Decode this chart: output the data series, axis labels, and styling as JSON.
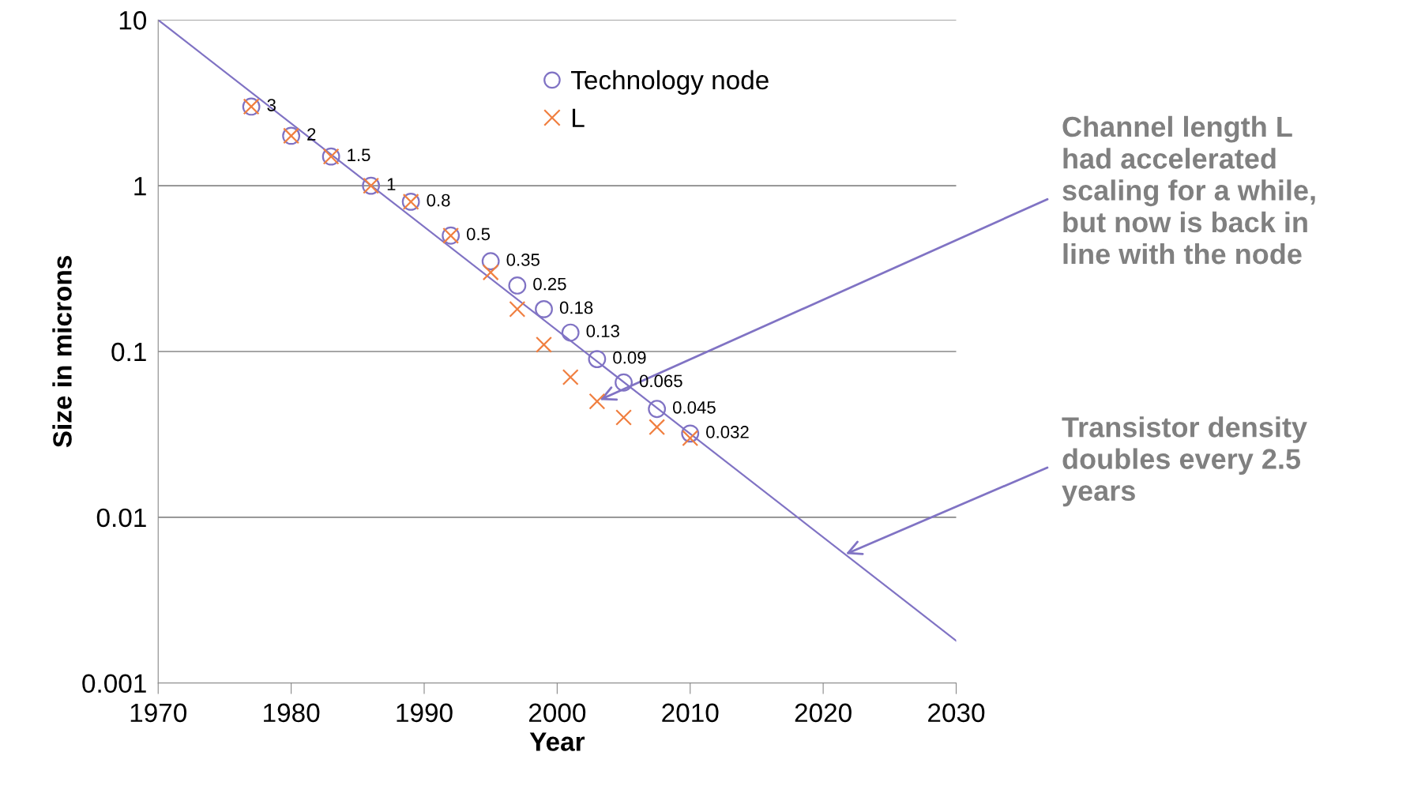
{
  "chart_data": {
    "type": "scatter",
    "xlabel": "Year",
    "ylabel": "Size in microns",
    "log": "y",
    "grid": "y",
    "legend": "top",
    "xlim": [
      1970,
      2030
    ],
    "xticks": [
      1970,
      1980,
      1990,
      2000,
      2010,
      2020,
      2030
    ],
    "ylim": [
      0.001,
      10
    ],
    "yticks": [
      0.001,
      0.01,
      0.1,
      1,
      10
    ],
    "series": [
      {
        "name": "Technology node",
        "marker": "circle",
        "color": "#8073c4",
        "x": [
          1977,
          1980,
          1983,
          1986,
          1989,
          1992,
          1995,
          1997,
          1999,
          2001,
          2003,
          2005,
          2007.5,
          2010
        ],
        "values": [
          3,
          2,
          1.5,
          1,
          0.8,
          0.5,
          0.35,
          0.25,
          0.18,
          0.13,
          0.09,
          0.065,
          0.045,
          0.032
        ],
        "value_labels": [
          "3",
          "2",
          "1.5",
          "1",
          "0.8",
          "0.5",
          "0.35",
          "0.25",
          "0.18",
          "0.13",
          "0.09",
          "0.065",
          "0.045",
          "0.032"
        ]
      },
      {
        "name": "L",
        "marker": "cross",
        "color": "#f07f40",
        "x": [
          1977,
          1980,
          1983,
          1986,
          1989,
          1992,
          1995,
          1997,
          1999,
          2001,
          2003,
          2005,
          2007.5,
          2010
        ],
        "values": [
          3,
          2,
          1.5,
          1,
          0.8,
          0.5,
          0.3,
          0.18,
          0.11,
          0.07,
          0.05,
          0.04,
          0.035,
          0.03
        ]
      },
      {
        "type": "line",
        "marker": "none",
        "color": "#8073c4",
        "x": [
          1970,
          2030
        ],
        "values": [
          10,
          0.0018
        ]
      }
    ],
    "annotations": [
      {
        "text": "Channel length L\nhad accelerated\nscaling for a while,\nbut now is back in\nline with the node",
        "x": 2003.2,
        "y": 0.051
      },
      {
        "text": "Transistor density\ndoubles every 2.5\nyears",
        "x": 2021.7,
        "y": 0.006
      }
    ]
  }
}
